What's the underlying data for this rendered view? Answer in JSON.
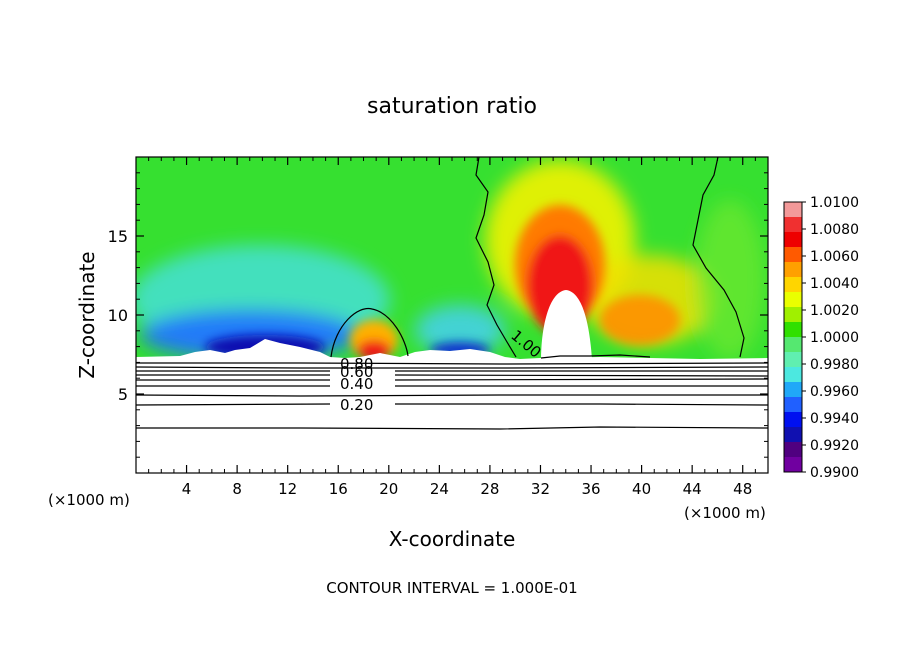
{
  "chart_data": {
    "type": "heatmap",
    "title": "saturation ratio",
    "xlabel": "X-coordinate",
    "ylabel": "Z-coordinate",
    "x_unit_label": "(×1000 m)",
    "x_ticks": [
      4,
      8,
      12,
      16,
      20,
      24,
      28,
      32,
      36,
      40,
      44,
      48
    ],
    "y_ticks": [
      5,
      10,
      15
    ],
    "xlim": [
      0,
      50
    ],
    "ylim": [
      0,
      20
    ],
    "colorbar": {
      "min": 0.99,
      "max": 1.01,
      "tick_labels": [
        "1.0100",
        "1.0080",
        "1.0060",
        "1.0040",
        "1.0020",
        "1.0000",
        "0.9980",
        "0.9960",
        "0.9940",
        "0.9920",
        "0.9900"
      ],
      "colors": [
        "#f39999",
        "#f03030",
        "#ee0000",
        "#ff5a00",
        "#ffa000",
        "#ffd500",
        "#eaff00",
        "#a0f000",
        "#30e000",
        "#55e870",
        "#60efb0",
        "#4ce8e0",
        "#20a8f8",
        "#2060ff",
        "#0010f0",
        "#1010b0",
        "#500080",
        "#7000a0"
      ]
    },
    "contour_labels": [
      "1.00",
      "0.80",
      "0.60",
      "0.40",
      "0.20"
    ],
    "footer": "CONTOUR INTERVAL = 1.000E-01"
  }
}
